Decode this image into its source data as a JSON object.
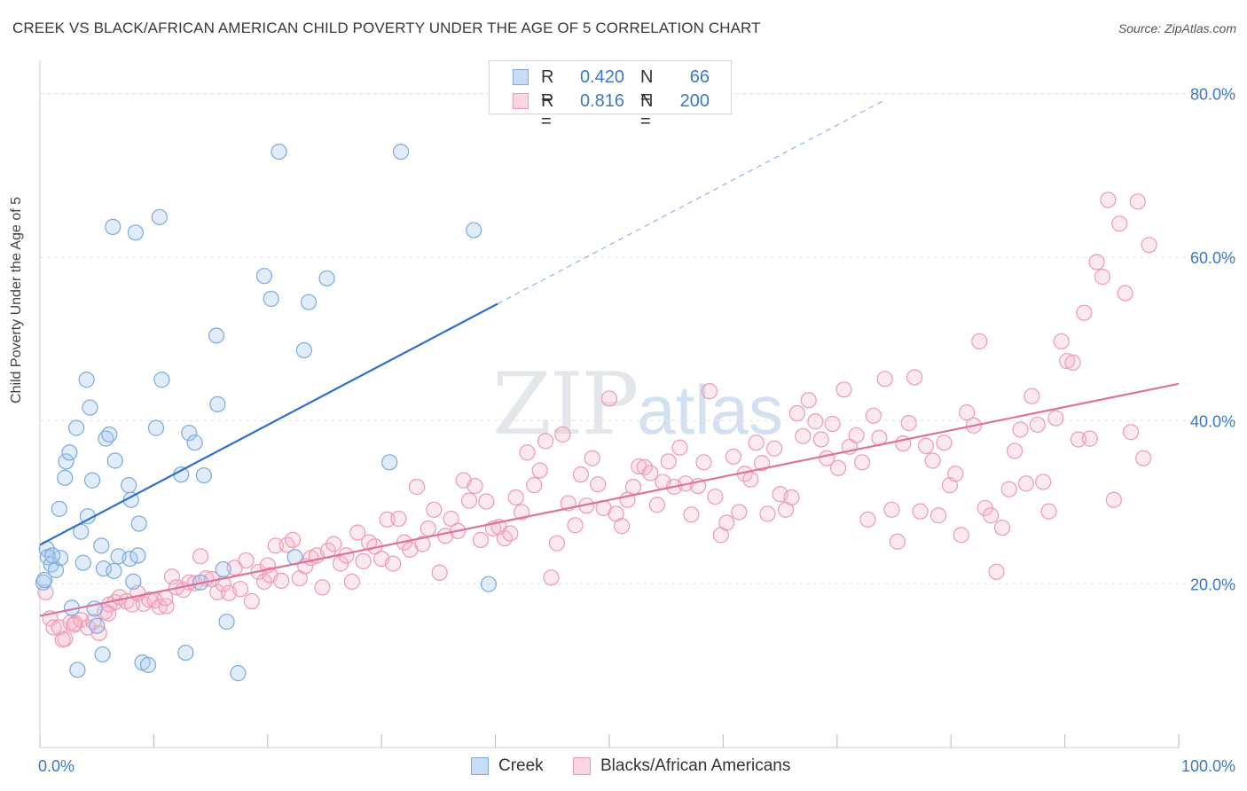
{
  "title": "CREEK VS BLACK/AFRICAN AMERICAN CHILD POVERTY UNDER THE AGE OF 5 CORRELATION CHART",
  "source": "Source: ZipAtlas.com",
  "watermark": {
    "zip": "ZIP",
    "atlas": "atlas"
  },
  "legend_top": {
    "rows": [
      {
        "r_label": "R =",
        "r_value": "0.420",
        "n_label": "N =",
        "n_value": "66",
        "color": "#a8c8ef"
      },
      {
        "r_label": "R =",
        "r_value": "0.816",
        "n_label": "N =",
        "n_value": "200",
        "color": "#f5b6c9"
      }
    ]
  },
  "legend_bottom": {
    "items": [
      {
        "label": "Creek",
        "color": "#a8c8ef"
      },
      {
        "label": "Blacks/African Americans",
        "color": "#f5b6c9"
      }
    ]
  },
  "colors": {
    "creek_stroke": "#7aaae0",
    "creek_fill": "rgba(168,200,239,0.35)",
    "creek_line": "#2d6fc9",
    "black_stroke": "#ee9ab4",
    "black_fill": "rgba(245,182,201,0.30)",
    "black_line": "#e0719a",
    "axis_label": "#3a78c9",
    "grid": "#e3e3e3"
  },
  "chart_data": {
    "type": "scatter",
    "title": "CREEK VS BLACK/AFRICAN AMERICAN CHILD POVERTY UNDER THE AGE OF 5 CORRELATION CHART",
    "xlabel": "",
    "ylabel": "Child Poverty Under the Age of 5",
    "xlim": [
      0,
      100
    ],
    "ylim": [
      0,
      83
    ],
    "x_ticks": [
      "0.0%",
      "100.0%"
    ],
    "y_ticks": [
      {
        "value": 20,
        "label": "20.0%"
      },
      {
        "value": 40,
        "label": "40.0%"
      },
      {
        "value": 60,
        "label": "60.0%"
      },
      {
        "value": 80,
        "label": "80.0%"
      }
    ],
    "grid": "horizontal dashed",
    "legend_position": "top-center",
    "series": [
      {
        "name": "Creek",
        "r": 0.42,
        "n": 66,
        "trend": {
          "x0": 0,
          "y0": 24.8,
          "x1": 40.2,
          "y1": 54.3,
          "x_ext": 74.3,
          "y_ext": 79.3
        },
        "points": [
          [
            0.3,
            20.2
          ],
          [
            0.6,
            24.3
          ],
          [
            0.7,
            23.3
          ],
          [
            1.0,
            22.4
          ],
          [
            1.4,
            21.7
          ],
          [
            1.7,
            29.2
          ],
          [
            1.8,
            23.2
          ],
          [
            2.2,
            33.0
          ],
          [
            2.3,
            35.0
          ],
          [
            2.6,
            36.1
          ],
          [
            2.8,
            17.1
          ],
          [
            3.2,
            39.1
          ],
          [
            3.3,
            9.5
          ],
          [
            3.6,
            26.4
          ],
          [
            3.8,
            22.6
          ],
          [
            4.1,
            45.0
          ],
          [
            4.2,
            28.3
          ],
          [
            4.4,
            41.6
          ],
          [
            4.6,
            32.7
          ],
          [
            4.8,
            17.0
          ],
          [
            5.0,
            14.9
          ],
          [
            5.4,
            24.7
          ],
          [
            5.5,
            11.4
          ],
          [
            5.6,
            21.9
          ],
          [
            5.8,
            37.8
          ],
          [
            6.1,
            38.3
          ],
          [
            6.4,
            63.7
          ],
          [
            6.5,
            21.6
          ],
          [
            6.6,
            35.1
          ],
          [
            6.9,
            23.4
          ],
          [
            7.8,
            32.1
          ],
          [
            7.9,
            23.1
          ],
          [
            8.0,
            30.3
          ],
          [
            8.2,
            20.3
          ],
          [
            8.4,
            63.0
          ],
          [
            8.6,
            23.5
          ],
          [
            8.7,
            27.4
          ],
          [
            9.0,
            10.4
          ],
          [
            9.5,
            10.1
          ],
          [
            10.2,
            39.1
          ],
          [
            10.5,
            64.9
          ],
          [
            10.7,
            45.0
          ],
          [
            12.4,
            33.4
          ],
          [
            12.8,
            11.6
          ],
          [
            13.1,
            38.5
          ],
          [
            13.6,
            37.3
          ],
          [
            14.4,
            33.3
          ],
          [
            15.5,
            50.4
          ],
          [
            15.6,
            42.0
          ],
          [
            16.1,
            21.8
          ],
          [
            16.4,
            15.4
          ],
          [
            17.4,
            9.1
          ],
          [
            19.7,
            57.7
          ],
          [
            20.3,
            54.9
          ],
          [
            21.0,
            72.9
          ],
          [
            22.4,
            23.3
          ],
          [
            23.2,
            48.6
          ],
          [
            23.6,
            54.5
          ],
          [
            25.2,
            57.4
          ],
          [
            30.7,
            34.9
          ],
          [
            31.7,
            72.9
          ],
          [
            38.1,
            63.3
          ],
          [
            39.4,
            20.0
          ],
          [
            0.4,
            20.5
          ],
          [
            1.1,
            23.5
          ],
          [
            14.1,
            20.2
          ]
        ]
      },
      {
        "name": "Blacks/African Americans",
        "r": 0.816,
        "n": 200,
        "trend": {
          "x0": 0,
          "y0": 16.1,
          "x1": 100,
          "y1": 44.5
        },
        "points": [
          [
            0.5,
            19.0
          ],
          [
            0.9,
            15.8
          ],
          [
            1.2,
            14.7
          ],
          [
            1.7,
            14.7
          ],
          [
            2.2,
            13.3
          ],
          [
            2.7,
            15.3
          ],
          [
            3.1,
            15.2
          ],
          [
            3.6,
            15.6
          ],
          [
            4.2,
            14.7
          ],
          [
            4.7,
            15.4
          ],
          [
            5.2,
            14.0
          ],
          [
            5.7,
            16.6
          ],
          [
            6.1,
            17.5
          ],
          [
            6.6,
            17.8
          ],
          [
            7.0,
            18.4
          ],
          [
            7.6,
            17.9
          ],
          [
            8.1,
            17.5
          ],
          [
            8.6,
            18.9
          ],
          [
            9.1,
            17.6
          ],
          [
            9.6,
            18.1
          ],
          [
            10.1,
            18.0
          ],
          [
            10.5,
            17.2
          ],
          [
            11.1,
            17.3
          ],
          [
            11.6,
            20.9
          ],
          [
            12.0,
            19.6
          ],
          [
            12.6,
            19.3
          ],
          [
            13.1,
            20.2
          ],
          [
            13.6,
            20.1
          ],
          [
            14.1,
            23.4
          ],
          [
            14.6,
            20.7
          ],
          [
            15.1,
            20.6
          ],
          [
            15.6,
            19.0
          ],
          [
            16.1,
            20.0
          ],
          [
            16.6,
            18.9
          ],
          [
            17.1,
            22.0
          ],
          [
            17.6,
            19.4
          ],
          [
            18.1,
            22.9
          ],
          [
            18.6,
            17.9
          ],
          [
            19.2,
            21.5
          ],
          [
            19.7,
            20.3
          ],
          [
            20.2,
            21.1
          ],
          [
            20.7,
            24.7
          ],
          [
            21.2,
            20.4
          ],
          [
            21.7,
            24.8
          ],
          [
            22.2,
            25.4
          ],
          [
            22.8,
            20.7
          ],
          [
            23.3,
            22.2
          ],
          [
            23.8,
            23.2
          ],
          [
            24.3,
            23.5
          ],
          [
            24.8,
            19.6
          ],
          [
            25.3,
            24.1
          ],
          [
            25.8,
            24.9
          ],
          [
            26.4,
            22.5
          ],
          [
            26.9,
            23.5
          ],
          [
            27.4,
            20.3
          ],
          [
            27.9,
            26.3
          ],
          [
            28.4,
            22.8
          ],
          [
            28.9,
            25.1
          ],
          [
            29.4,
            24.6
          ],
          [
            30.0,
            23.1
          ],
          [
            30.5,
            27.9
          ],
          [
            31.0,
            22.5
          ],
          [
            31.5,
            28.0
          ],
          [
            32.0,
            25.1
          ],
          [
            32.5,
            24.2
          ],
          [
            33.1,
            31.9
          ],
          [
            33.6,
            24.9
          ],
          [
            34.1,
            26.8
          ],
          [
            34.6,
            29.1
          ],
          [
            35.1,
            21.4
          ],
          [
            35.6,
            25.9
          ],
          [
            36.1,
            28.0
          ],
          [
            36.7,
            26.5
          ],
          [
            37.2,
            32.7
          ],
          [
            37.7,
            30.2
          ],
          [
            38.2,
            32.0
          ],
          [
            38.7,
            25.4
          ],
          [
            39.2,
            30.1
          ],
          [
            39.8,
            26.8
          ],
          [
            40.3,
            27.0
          ],
          [
            40.8,
            25.6
          ],
          [
            41.3,
            26.2
          ],
          [
            41.8,
            30.6
          ],
          [
            42.3,
            28.8
          ],
          [
            42.8,
            36.1
          ],
          [
            43.4,
            32.1
          ],
          [
            43.9,
            33.9
          ],
          [
            44.4,
            37.5
          ],
          [
            44.9,
            20.8
          ],
          [
            45.4,
            25.0
          ],
          [
            45.9,
            38.3
          ],
          [
            46.4,
            29.9
          ],
          [
            47.0,
            27.2
          ],
          [
            47.5,
            33.4
          ],
          [
            48.0,
            29.6
          ],
          [
            48.5,
            35.4
          ],
          [
            49.0,
            32.2
          ],
          [
            49.5,
            29.3
          ],
          [
            50.0,
            42.7
          ],
          [
            50.6,
            28.6
          ],
          [
            51.1,
            27.1
          ],
          [
            51.6,
            30.3
          ],
          [
            52.1,
            31.9
          ],
          [
            52.6,
            34.4
          ],
          [
            53.1,
            34.3
          ],
          [
            53.6,
            33.6
          ],
          [
            54.2,
            29.7
          ],
          [
            54.7,
            32.5
          ],
          [
            55.2,
            35.0
          ],
          [
            55.7,
            31.9
          ],
          [
            56.2,
            36.7
          ],
          [
            56.7,
            32.3
          ],
          [
            57.2,
            28.5
          ],
          [
            57.8,
            32.0
          ],
          [
            58.3,
            34.9
          ],
          [
            58.8,
            43.6
          ],
          [
            59.3,
            30.7
          ],
          [
            59.8,
            26.0
          ],
          [
            60.3,
            27.5
          ],
          [
            60.9,
            35.6
          ],
          [
            61.4,
            28.8
          ],
          [
            61.9,
            33.5
          ],
          [
            62.4,
            32.8
          ],
          [
            62.9,
            37.3
          ],
          [
            63.4,
            34.8
          ],
          [
            63.9,
            28.6
          ],
          [
            64.5,
            36.6
          ],
          [
            65.0,
            31.0
          ],
          [
            65.5,
            29.1
          ],
          [
            66.0,
            30.6
          ],
          [
            66.5,
            40.9
          ],
          [
            67.0,
            38.1
          ],
          [
            67.5,
            42.5
          ],
          [
            68.1,
            39.9
          ],
          [
            68.6,
            37.7
          ],
          [
            69.1,
            35.4
          ],
          [
            69.6,
            39.6
          ],
          [
            70.1,
            34.2
          ],
          [
            70.6,
            43.8
          ],
          [
            71.1,
            36.8
          ],
          [
            71.7,
            38.2
          ],
          [
            72.2,
            34.9
          ],
          [
            72.7,
            27.9
          ],
          [
            73.2,
            40.6
          ],
          [
            73.7,
            37.9
          ],
          [
            74.2,
            45.1
          ],
          [
            74.8,
            29.1
          ],
          [
            75.3,
            25.2
          ],
          [
            75.8,
            37.2
          ],
          [
            76.3,
            39.7
          ],
          [
            76.8,
            45.3
          ],
          [
            77.3,
            28.9
          ],
          [
            77.8,
            36.9
          ],
          [
            78.4,
            35.1
          ],
          [
            78.9,
            28.4
          ],
          [
            79.4,
            37.3
          ],
          [
            79.9,
            32.1
          ],
          [
            80.4,
            33.5
          ],
          [
            80.9,
            26.0
          ],
          [
            81.4,
            41.0
          ],
          [
            82.0,
            39.4
          ],
          [
            82.5,
            49.7
          ],
          [
            83.0,
            29.3
          ],
          [
            83.5,
            28.4
          ],
          [
            84.0,
            21.5
          ],
          [
            84.5,
            26.9
          ],
          [
            85.1,
            31.6
          ],
          [
            85.6,
            36.3
          ],
          [
            86.1,
            38.9
          ],
          [
            86.6,
            32.3
          ],
          [
            87.1,
            43.0
          ],
          [
            87.6,
            39.5
          ],
          [
            88.1,
            32.5
          ],
          [
            88.6,
            28.9
          ],
          [
            89.2,
            40.3
          ],
          [
            89.7,
            49.7
          ],
          [
            90.2,
            47.3
          ],
          [
            90.7,
            47.1
          ],
          [
            91.2,
            37.7
          ],
          [
            91.7,
            53.2
          ],
          [
            92.2,
            37.8
          ],
          [
            92.8,
            59.4
          ],
          [
            93.3,
            57.6
          ],
          [
            93.8,
            67.0
          ],
          [
            94.3,
            30.3
          ],
          [
            94.8,
            64.1
          ],
          [
            95.3,
            55.6
          ],
          [
            95.8,
            38.6
          ],
          [
            96.4,
            66.8
          ],
          [
            96.9,
            35.4
          ],
          [
            97.4,
            61.5
          ],
          [
            3.0,
            15.0
          ],
          [
            2.0,
            13.2
          ],
          [
            6.0,
            16.4
          ],
          [
            11.0,
            18.3
          ],
          [
            20.0,
            22.3
          ]
        ]
      }
    ]
  }
}
